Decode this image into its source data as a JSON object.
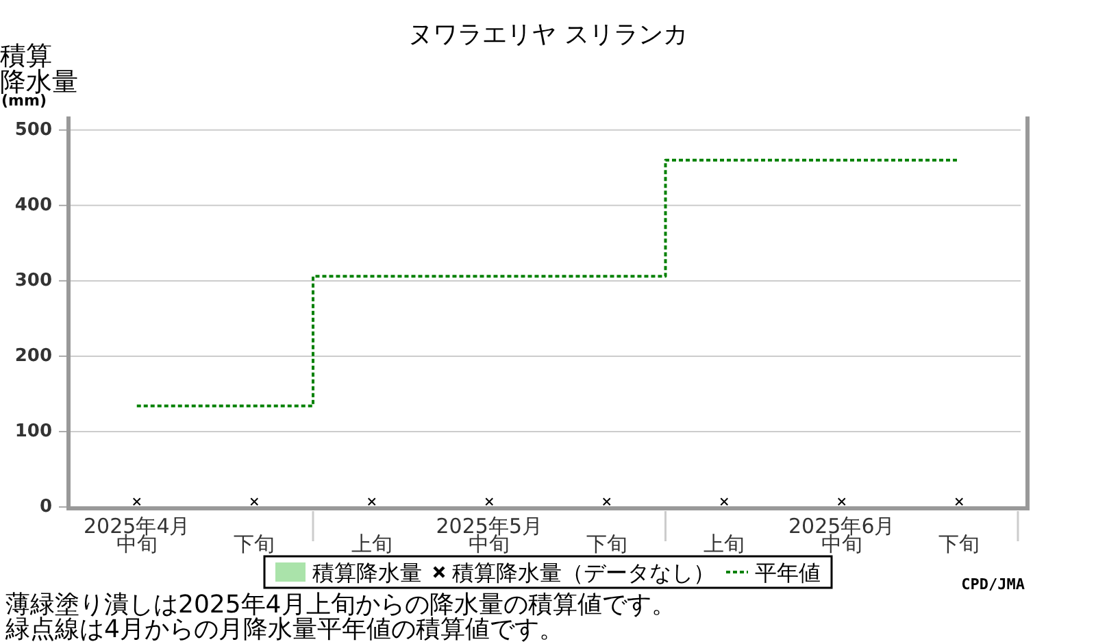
{
  "chart_data": {
    "type": "step",
    "title": "ヌワラエリヤ スリランカ",
    "ylabel": "積算降水量(mm)",
    "categories": [
      "2025年4月中旬",
      "下旬",
      "上旬",
      "2025年5月中旬",
      "下旬",
      "上旬",
      "2025年6月中旬",
      "下旬"
    ],
    "series": [
      {
        "name": "積算降水量",
        "type": "area",
        "color": "#aae3aa",
        "values": [
          null,
          null,
          null,
          null,
          null,
          null,
          null,
          null
        ]
      },
      {
        "name": "積算降水量（データなし）",
        "type": "scatter",
        "marker": "cross",
        "color": "#000000",
        "values": [
          7,
          7,
          7,
          7,
          7,
          7,
          7,
          7
        ]
      },
      {
        "name": "平年値",
        "line_style": "dotted",
        "color": "#008000",
        "values": [
          134,
          134,
          306,
          306,
          306,
          460,
          460,
          460
        ]
      }
    ],
    "ylim": [
      0,
      518
    ],
    "yticks": [
      0,
      100,
      200,
      300,
      400,
      500
    ],
    "grid": "y",
    "legend": "bottom",
    "annotations": [
      "薄緑塗り潰しは2025年4月上旬からの降水量の積算値です。",
      "緑点線は4月からの月降水量平年値の積算値です。",
      "CPD/JMA"
    ]
  }
}
